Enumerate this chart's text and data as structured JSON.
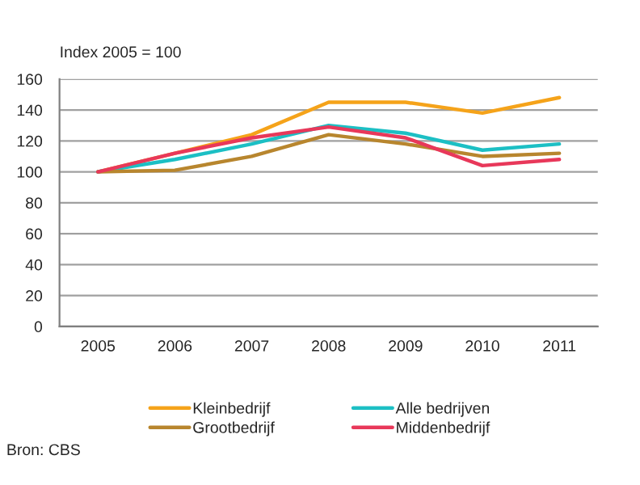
{
  "chart_data": {
    "type": "line",
    "ylabel": "Index 2005 = 100",
    "categories": [
      "2005",
      "2006",
      "2007",
      "2008",
      "2009",
      "2010",
      "2011"
    ],
    "series": [
      {
        "name": "Kleinbedrijf",
        "color": "#f5a31a",
        "values": [
          100,
          112,
          124,
          145,
          145,
          138,
          148
        ]
      },
      {
        "name": "Alle bedrijven",
        "color": "#1cbfc4",
        "values": [
          100,
          108,
          118,
          130,
          125,
          114,
          118
        ]
      },
      {
        "name": "Grootbedrijf",
        "color": "#b8862e",
        "values": [
          100,
          101,
          110,
          124,
          118,
          110,
          112
        ]
      },
      {
        "name": "Middenbedrijf",
        "color": "#e8385a",
        "values": [
          100,
          112,
          122,
          129,
          122,
          104,
          108
        ]
      }
    ],
    "ylim": [
      0,
      160
    ],
    "yticks": [
      0,
      20,
      40,
      60,
      80,
      100,
      120,
      140,
      160
    ],
    "grid": "y",
    "legend": "bottom",
    "marker": "none",
    "line_style": "solid",
    "annotations": [
      "Bron: CBS"
    ]
  }
}
